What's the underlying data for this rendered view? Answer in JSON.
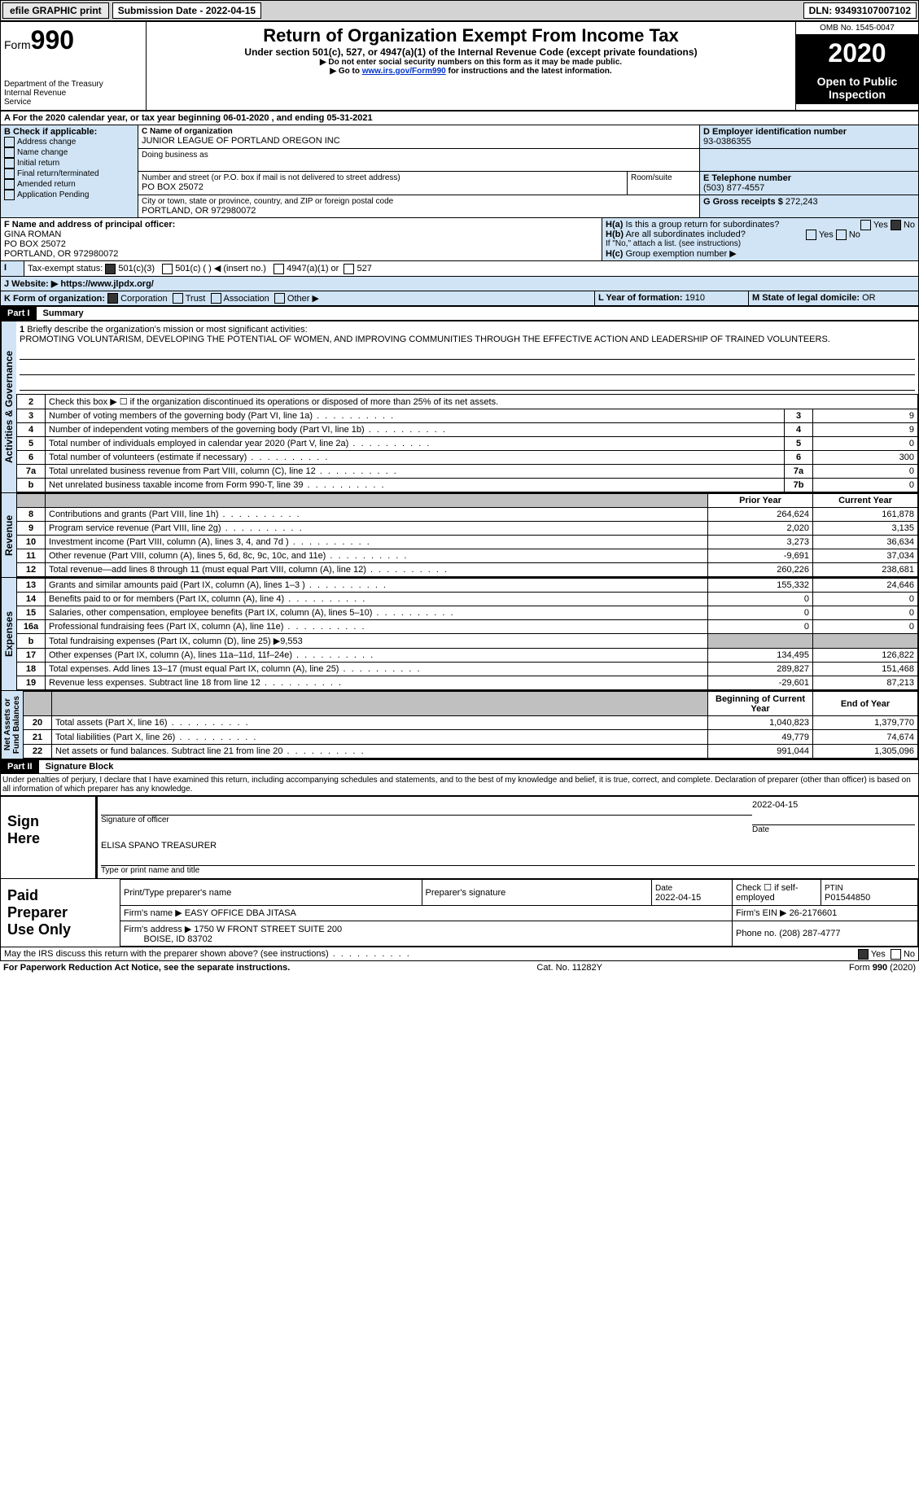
{
  "top": {
    "efile": "efile GRAPHIC print",
    "subdate_lbl": "Submission Date - ",
    "subdate": "2022-04-15",
    "dln_lbl": "DLN: ",
    "dln": "93493107007102"
  },
  "header": {
    "form_prefix": "Form",
    "form_no": "990",
    "dept": "Department of the Treasury\nInternal Revenue\nService",
    "title": "Return of Organization Exempt From Income Tax",
    "subtitle": "Under section 501(c), 527, or 4947(a)(1) of the Internal Revenue Code (except private foundations)",
    "warn1": "▶ Do not enter social security numbers on this form as it may be made public.",
    "warn2": "▶ Go to ",
    "link": "www.irs.gov/Form990",
    "warn3": " for instructions and the latest information.",
    "omb": "OMB No. 1545-0047",
    "year": "2020",
    "open": "Open to Public\nInspection"
  },
  "a_line": "A For the 2020 calendar year, or tax year beginning 06-01-2020    , and ending 05-31-2021",
  "b": {
    "hdr": "B Check if applicable:",
    "items": [
      "Address change",
      "Name change",
      "Initial return",
      "Final return/terminated",
      "Amended return",
      "Application Pending"
    ]
  },
  "c": {
    "lbl": "C Name of organization",
    "name": "JUNIOR LEAGUE OF PORTLAND OREGON INC",
    "dba_lbl": "Doing business as",
    "street_lbl": "Number and street (or P.O. box if mail is not delivered to street address)",
    "room_lbl": "Room/suite",
    "street": "PO BOX 25072",
    "city_lbl": "City or town, state or province, country, and ZIP or foreign postal code",
    "city": "PORTLAND, OR  972980072"
  },
  "d": {
    "lbl": "D Employer identification number",
    "val": "93-0386355"
  },
  "e": {
    "lbl": "E Telephone number",
    "val": "(503) 877-4557"
  },
  "g": {
    "lbl": "G Gross receipts $ ",
    "val": "272,243"
  },
  "f": {
    "lbl": "F Name and address of principal officer:",
    "name": "GINA ROMAN",
    "addr1": "PO BOX 25072",
    "addr2": "PORTLAND, OR  972980072"
  },
  "h": {
    "a": "Is this a group return for subordinates?",
    "b": "Are all subordinates included?",
    "note": "If \"No,\" attach a list. (see instructions)",
    "c": "Group exemption number ▶",
    "yes": "Yes",
    "no": "No"
  },
  "i": {
    "lbl": "Tax-exempt status:",
    "o1": "501(c)(3)",
    "o2": "501(c) (  ) ◀ (insert no.)",
    "o3": "4947(a)(1) or",
    "o4": "527"
  },
  "j": {
    "lbl": "J   Website: ▶",
    "val": "https://www.jlpdx.org/"
  },
  "k": {
    "lbl": "K Form of organization:",
    "o1": "Corporation",
    "o2": "Trust",
    "o3": "Association",
    "o4": "Other ▶"
  },
  "l": {
    "lbl": "L Year of formation: ",
    "val": "1910"
  },
  "m": {
    "lbl": "M State of legal domicile: ",
    "val": "OR"
  },
  "part1": {
    "lbl": "Part I",
    "title": "Summary"
  },
  "mission": {
    "q": "Briefly describe the organization's mission or most significant activities:",
    "text": "PROMOTING VOLUNTARISM, DEVELOPING THE POTENTIAL OF WOMEN, AND IMPROVING COMMUNITIES THROUGH THE EFFECTIVE ACTION AND LEADERSHIP OF TRAINED VOLUNTEERS."
  },
  "gov_rows": [
    {
      "n": "2",
      "t": "Check this box ▶ ☐  if the organization discontinued its operations or disposed of more than 25% of its net assets.",
      "box": "",
      "v": ""
    },
    {
      "n": "3",
      "t": "Number of voting members of the governing body (Part VI, line 1a)",
      "box": "3",
      "v": "9"
    },
    {
      "n": "4",
      "t": "Number of independent voting members of the governing body (Part VI, line 1b)",
      "box": "4",
      "v": "9"
    },
    {
      "n": "5",
      "t": "Total number of individuals employed in calendar year 2020 (Part V, line 2a)",
      "box": "5",
      "v": "0"
    },
    {
      "n": "6",
      "t": "Total number of volunteers (estimate if necessary)",
      "box": "6",
      "v": "300"
    },
    {
      "n": "7a",
      "t": "Total unrelated business revenue from Part VIII, column (C), line 12",
      "box": "7a",
      "v": "0"
    },
    {
      "n": "b",
      "t": "Net unrelated business taxable income from Form 990-T, line 39",
      "box": "7b",
      "v": "0"
    }
  ],
  "col_hdr": {
    "py": "Prior Year",
    "cy": "Current Year"
  },
  "rev_rows": [
    {
      "n": "8",
      "t": "Contributions and grants (Part VIII, line 1h)",
      "py": "264,624",
      "cy": "161,878"
    },
    {
      "n": "9",
      "t": "Program service revenue (Part VIII, line 2g)",
      "py": "2,020",
      "cy": "3,135"
    },
    {
      "n": "10",
      "t": "Investment income (Part VIII, column (A), lines 3, 4, and 7d )",
      "py": "3,273",
      "cy": "36,634"
    },
    {
      "n": "11",
      "t": "Other revenue (Part VIII, column (A), lines 5, 6d, 8c, 9c, 10c, and 11e)",
      "py": "-9,691",
      "cy": "37,034"
    },
    {
      "n": "12",
      "t": "Total revenue—add lines 8 through 11 (must equal Part VIII, column (A), line 12)",
      "py": "260,226",
      "cy": "238,681"
    }
  ],
  "exp_rows": [
    {
      "n": "13",
      "t": "Grants and similar amounts paid (Part IX, column (A), lines 1–3 )",
      "py": "155,332",
      "cy": "24,646"
    },
    {
      "n": "14",
      "t": "Benefits paid to or for members (Part IX, column (A), line 4)",
      "py": "0",
      "cy": "0"
    },
    {
      "n": "15",
      "t": "Salaries, other compensation, employee benefits (Part IX, column (A), lines 5–10)",
      "py": "0",
      "cy": "0"
    },
    {
      "n": "16a",
      "t": "Professional fundraising fees (Part IX, column (A), line 11e)",
      "py": "0",
      "cy": "0"
    },
    {
      "n": "b",
      "t": "Total fundraising expenses (Part IX, column (D), line 25) ▶9,553",
      "py": "",
      "cy": "",
      "gray": true
    },
    {
      "n": "17",
      "t": "Other expenses (Part IX, column (A), lines 11a–11d, 11f–24e)",
      "py": "134,495",
      "cy": "126,822"
    },
    {
      "n": "18",
      "t": "Total expenses. Add lines 13–17 (must equal Part IX, column (A), line 25)",
      "py": "289,827",
      "cy": "151,468"
    },
    {
      "n": "19",
      "t": "Revenue less expenses. Subtract line 18 from line 12",
      "py": "-29,601",
      "cy": "87,213"
    }
  ],
  "na_hdr": {
    "b": "Beginning of Current Year",
    "e": "End of Year"
  },
  "na_rows": [
    {
      "n": "20",
      "t": "Total assets (Part X, line 16)",
      "b": "1,040,823",
      "e": "1,379,770"
    },
    {
      "n": "21",
      "t": "Total liabilities (Part X, line 26)",
      "b": "49,779",
      "e": "74,674"
    },
    {
      "n": "22",
      "t": "Net assets or fund balances. Subtract line 21 from line 20",
      "b": "991,044",
      "e": "1,305,096"
    }
  ],
  "sections": {
    "gov": "Activities & Governance",
    "rev": "Revenue",
    "exp": "Expenses",
    "na": "Net Assets or\nFund Balances"
  },
  "part2": {
    "lbl": "Part II",
    "title": "Signature Block"
  },
  "perjury": "Under penalties of perjury, I declare that I have examined this return, including accompanying schedules and statements, and to the best of my knowledge and belief, it is true, correct, and complete. Declaration of preparer (other than officer) is based on all information of which preparer has any knowledge.",
  "sign": {
    "here": "Sign\nHere",
    "sig_lbl": "Signature of officer",
    "date_lbl": "Date",
    "date": "2022-04-15",
    "name": "ELISA SPANO TREASURER",
    "name_lbl": "Type or print name and title"
  },
  "prep": {
    "lbl": "Paid\nPreparer\nUse Only",
    "col1": "Print/Type preparer's name",
    "col2": "Preparer's signature",
    "col3_lbl": "Date",
    "col3": "2022-04-15",
    "col4": "Check ☐ if self-employed",
    "col5_lbl": "PTIN",
    "col5": "P01544850",
    "firm_lbl": "Firm's name    ▶",
    "firm": "EASY OFFICE DBA JITASA",
    "ein_lbl": "Firm's EIN ▶",
    "ein": "26-2176601",
    "addr_lbl": "Firm's address ▶",
    "addr1": "1750 W FRONT STREET SUITE 200",
    "addr2": "BOISE, ID  83702",
    "phone_lbl": "Phone no. ",
    "phone": "(208) 287-4777"
  },
  "discuss": "May the IRS discuss this return with the preparer shown above? (see instructions)",
  "footer": {
    "l": "For Paperwork Reduction Act Notice, see the separate instructions.",
    "c": "Cat. No. 11282Y",
    "r": "Form 990 (2020)"
  }
}
